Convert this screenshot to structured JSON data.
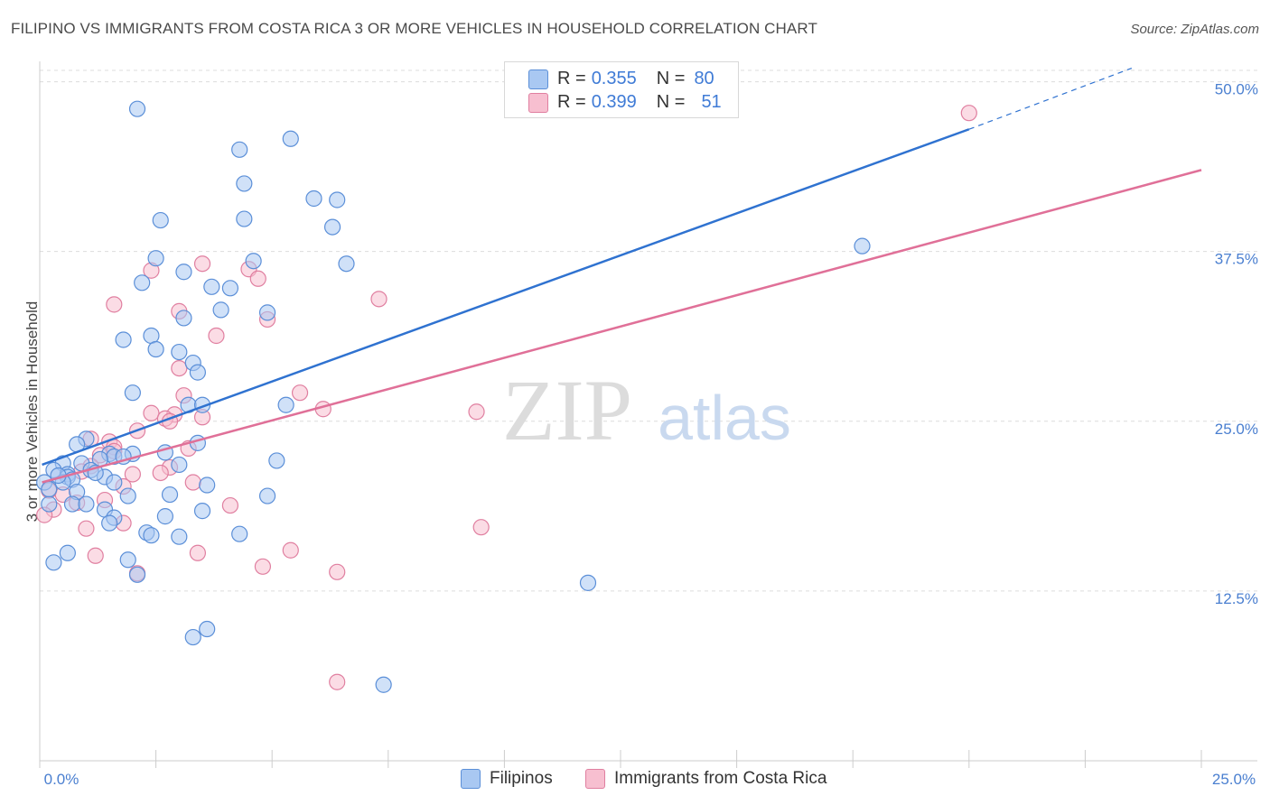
{
  "title": "FILIPINO VS IMMIGRANTS FROM COSTA RICA 3 OR MORE VEHICLES IN HOUSEHOLD CORRELATION CHART",
  "source": "Source: ZipAtlas.com",
  "watermark": {
    "zip": "ZIP",
    "atlas": "atlas"
  },
  "legend": {
    "r_label": "R =",
    "n_label": "N =",
    "entries": [
      {
        "name": "Filipinos",
        "r": "0.355",
        "n": "80",
        "fill": "#a9c8f2",
        "stroke": "#5b8fd8"
      },
      {
        "name": "Immigrants from Costa Rica",
        "r": "0.399",
        "n": "51",
        "fill": "#f7bfd0",
        "stroke": "#e07fa0"
      }
    ]
  },
  "colors": {
    "blue_line": "#2f72d0",
    "pink_line": "#e07098",
    "grid": "#dcdcdc",
    "tick": "#4a7fd0"
  },
  "chart_data": {
    "type": "scatter",
    "title": "FILIPINO VS IMMIGRANTS FROM COSTA RICA 3 OR MORE VEHICLES IN HOUSEHOLD CORRELATION CHART",
    "xlabel": "",
    "ylabel": "3 or more Vehicles in Household",
    "xlim": [
      0,
      25
    ],
    "ylim": [
      0,
      51.5
    ],
    "x_tick_labels": [
      "0.0%",
      "25.0%"
    ],
    "y_ticks": [
      12.5,
      25.0,
      37.5,
      50.0
    ],
    "y_tick_labels": [
      "12.5%",
      "25.0%",
      "37.5%",
      "50.0%"
    ],
    "series": [
      {
        "name": "Filipinos",
        "trend": {
          "x": [
            0.05,
            20
          ],
          "y": [
            21.8,
            46.5
          ],
          "dashed_to": [
            23.5,
            51.0
          ]
        },
        "points": [
          [
            2.1,
            48.0
          ],
          [
            4.3,
            45.0
          ],
          [
            5.4,
            45.8
          ],
          [
            4.4,
            42.5
          ],
          [
            5.9,
            41.4
          ],
          [
            6.4,
            41.3
          ],
          [
            2.6,
            39.8
          ],
          [
            4.4,
            39.9
          ],
          [
            6.3,
            39.3
          ],
          [
            17.7,
            37.9
          ],
          [
            2.5,
            37.0
          ],
          [
            4.6,
            36.8
          ],
          [
            6.6,
            36.6
          ],
          [
            3.1,
            36.0
          ],
          [
            2.2,
            35.2
          ],
          [
            3.7,
            34.9
          ],
          [
            4.1,
            34.8
          ],
          [
            3.9,
            33.2
          ],
          [
            4.9,
            33.0
          ],
          [
            3.1,
            32.6
          ],
          [
            2.4,
            31.3
          ],
          [
            1.8,
            31.0
          ],
          [
            2.5,
            30.3
          ],
          [
            3.0,
            30.1
          ],
          [
            3.3,
            29.3
          ],
          [
            3.4,
            28.6
          ],
          [
            2.0,
            27.1
          ],
          [
            3.2,
            26.2
          ],
          [
            3.5,
            26.2
          ],
          [
            5.3,
            26.2
          ],
          [
            1.0,
            23.7
          ],
          [
            0.8,
            23.3
          ],
          [
            2.7,
            22.7
          ],
          [
            1.5,
            22.6
          ],
          [
            1.6,
            22.4
          ],
          [
            2.0,
            22.6
          ],
          [
            3.4,
            23.4
          ],
          [
            1.3,
            22.2
          ],
          [
            1.8,
            22.4
          ],
          [
            0.9,
            21.9
          ],
          [
            5.1,
            22.1
          ],
          [
            0.5,
            21.9
          ],
          [
            3.0,
            21.8
          ],
          [
            0.3,
            21.4
          ],
          [
            0.6,
            21.1
          ],
          [
            0.6,
            20.9
          ],
          [
            0.7,
            20.7
          ],
          [
            1.4,
            20.9
          ],
          [
            1.1,
            21.4
          ],
          [
            0.1,
            20.5
          ],
          [
            0.5,
            20.5
          ],
          [
            1.6,
            20.5
          ],
          [
            0.8,
            19.8
          ],
          [
            1.9,
            19.5
          ],
          [
            4.9,
            19.5
          ],
          [
            0.7,
            18.9
          ],
          [
            1.0,
            18.9
          ],
          [
            0.2,
            18.9
          ],
          [
            1.4,
            18.5
          ],
          [
            3.5,
            18.4
          ],
          [
            2.7,
            18.0
          ],
          [
            1.6,
            17.9
          ],
          [
            1.5,
            17.5
          ],
          [
            2.3,
            16.8
          ],
          [
            2.4,
            16.6
          ],
          [
            3.0,
            16.5
          ],
          [
            4.3,
            16.7
          ],
          [
            0.6,
            15.3
          ],
          [
            1.9,
            14.8
          ],
          [
            0.3,
            14.6
          ],
          [
            2.1,
            13.7
          ],
          [
            11.8,
            13.1
          ],
          [
            3.6,
            9.7
          ],
          [
            3.3,
            9.1
          ],
          [
            7.4,
            5.6
          ],
          [
            0.2,
            20.0
          ],
          [
            1.2,
            21.2
          ],
          [
            0.4,
            21.0
          ],
          [
            2.8,
            19.6
          ],
          [
            3.6,
            20.3
          ]
        ]
      },
      {
        "name": "Immigrants from Costa Rica",
        "trend": {
          "x": [
            0.05,
            25
          ],
          "y": [
            20.5,
            43.5
          ]
        },
        "points": [
          [
            20.0,
            47.7
          ],
          [
            3.5,
            36.6
          ],
          [
            2.4,
            36.1
          ],
          [
            4.5,
            36.2
          ],
          [
            4.7,
            35.5
          ],
          [
            7.3,
            34.0
          ],
          [
            1.6,
            33.6
          ],
          [
            3.0,
            33.1
          ],
          [
            4.9,
            32.5
          ],
          [
            3.8,
            31.3
          ],
          [
            3.0,
            28.9
          ],
          [
            5.6,
            27.1
          ],
          [
            3.1,
            26.9
          ],
          [
            6.1,
            25.9
          ],
          [
            9.4,
            25.7
          ],
          [
            2.4,
            25.6
          ],
          [
            2.9,
            25.5
          ],
          [
            3.5,
            25.3
          ],
          [
            2.7,
            25.2
          ],
          [
            2.8,
            25.0
          ],
          [
            2.1,
            24.3
          ],
          [
            1.1,
            23.7
          ],
          [
            1.5,
            23.5
          ],
          [
            1.6,
            23.1
          ],
          [
            3.2,
            23.0
          ],
          [
            1.6,
            22.8
          ],
          [
            1.3,
            22.5
          ],
          [
            2.8,
            21.6
          ],
          [
            1.1,
            21.7
          ],
          [
            0.9,
            21.3
          ],
          [
            2.6,
            21.2
          ],
          [
            2.0,
            21.1
          ],
          [
            3.3,
            20.5
          ],
          [
            0.2,
            19.9
          ],
          [
            1.8,
            20.2
          ],
          [
            0.5,
            19.6
          ],
          [
            0.8,
            19.0
          ],
          [
            4.1,
            18.8
          ],
          [
            1.4,
            19.2
          ],
          [
            0.3,
            18.5
          ],
          [
            0.1,
            18.1
          ],
          [
            1.0,
            17.1
          ],
          [
            1.8,
            17.5
          ],
          [
            9.5,
            17.2
          ],
          [
            3.4,
            15.3
          ],
          [
            5.4,
            15.5
          ],
          [
            1.2,
            15.1
          ],
          [
            4.8,
            14.3
          ],
          [
            2.1,
            13.8
          ],
          [
            6.4,
            13.9
          ],
          [
            6.4,
            5.8
          ]
        ]
      }
    ]
  }
}
